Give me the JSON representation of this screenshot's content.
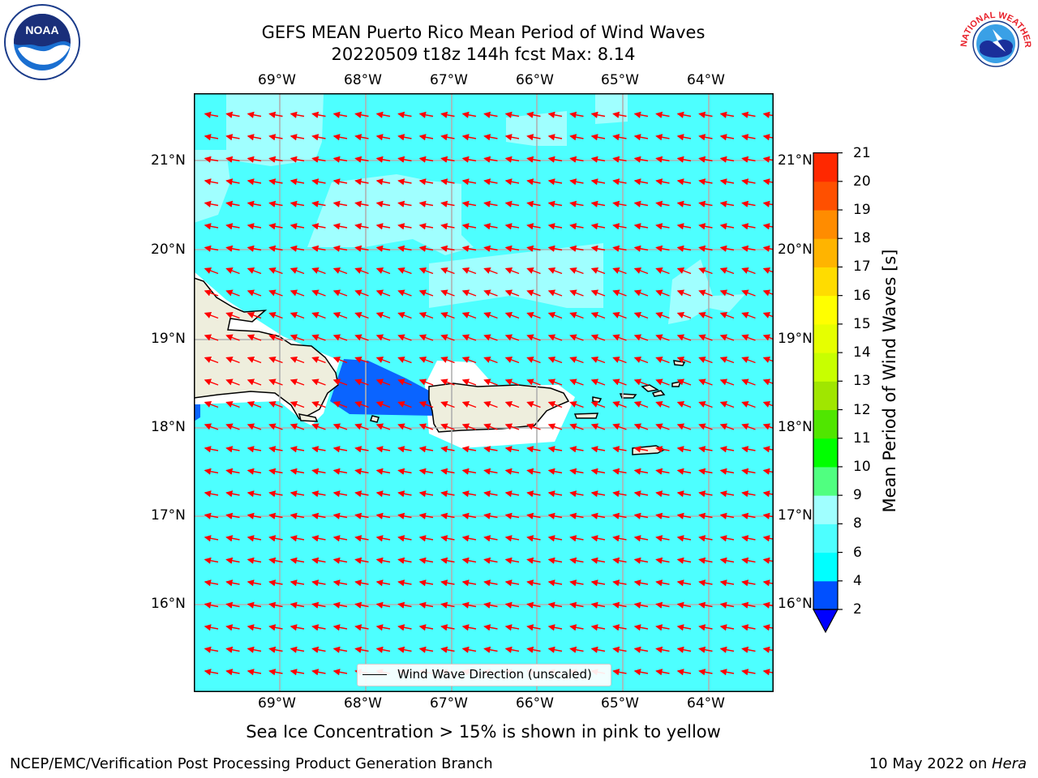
{
  "header": {
    "title_line1": "GEFS MEAN Puerto Rico Mean Period of Wind Waves",
    "title_line2": "20220509 t18z 144h fcst   Max: 8.14"
  },
  "map": {
    "lon_labels": [
      "69°W",
      "68°W",
      "67°W",
      "66°W",
      "65°W",
      "64°W"
    ],
    "lat_labels": [
      "21°N",
      "20°N",
      "19°N",
      "18°N",
      "17°N",
      "16°N"
    ],
    "legend_label": "Wind Wave Direction (unscaled)",
    "ocean_color": "#4dffff",
    "land_color": "#eeeedd",
    "arrow_color": "#ff0000"
  },
  "colorbar": {
    "title": "Mean Period of Wind Waves [s]",
    "ticks": [
      "2",
      "4",
      "6",
      "8",
      "9",
      "10",
      "11",
      "12",
      "13",
      "14",
      "15",
      "16",
      "17",
      "18",
      "19",
      "20",
      "21"
    ],
    "colors": [
      "#0050ff",
      "#00ffff",
      "#4dffff",
      "#a0ffff",
      "#50ff80",
      "#00ff00",
      "#50e600",
      "#a0e600",
      "#c8ff00",
      "#e6ff00",
      "#ffff00",
      "#ffdc00",
      "#ffb400",
      "#ff8c00",
      "#ff5000",
      "#ff2800",
      "#ff0000"
    ],
    "extend_color": "#0000ff"
  },
  "logos": {
    "noaa_text": "NOAA",
    "nws_text": "NATIONAL WEATHER SERVICE"
  },
  "footer": {
    "note": "Sea Ice Concentration > 15% is shown in pink to yellow",
    "left": "NCEP/EMC/Verification Post Processing Product Generation Branch",
    "right_date": "10 May 2022 on ",
    "right_host": "Hera"
  }
}
